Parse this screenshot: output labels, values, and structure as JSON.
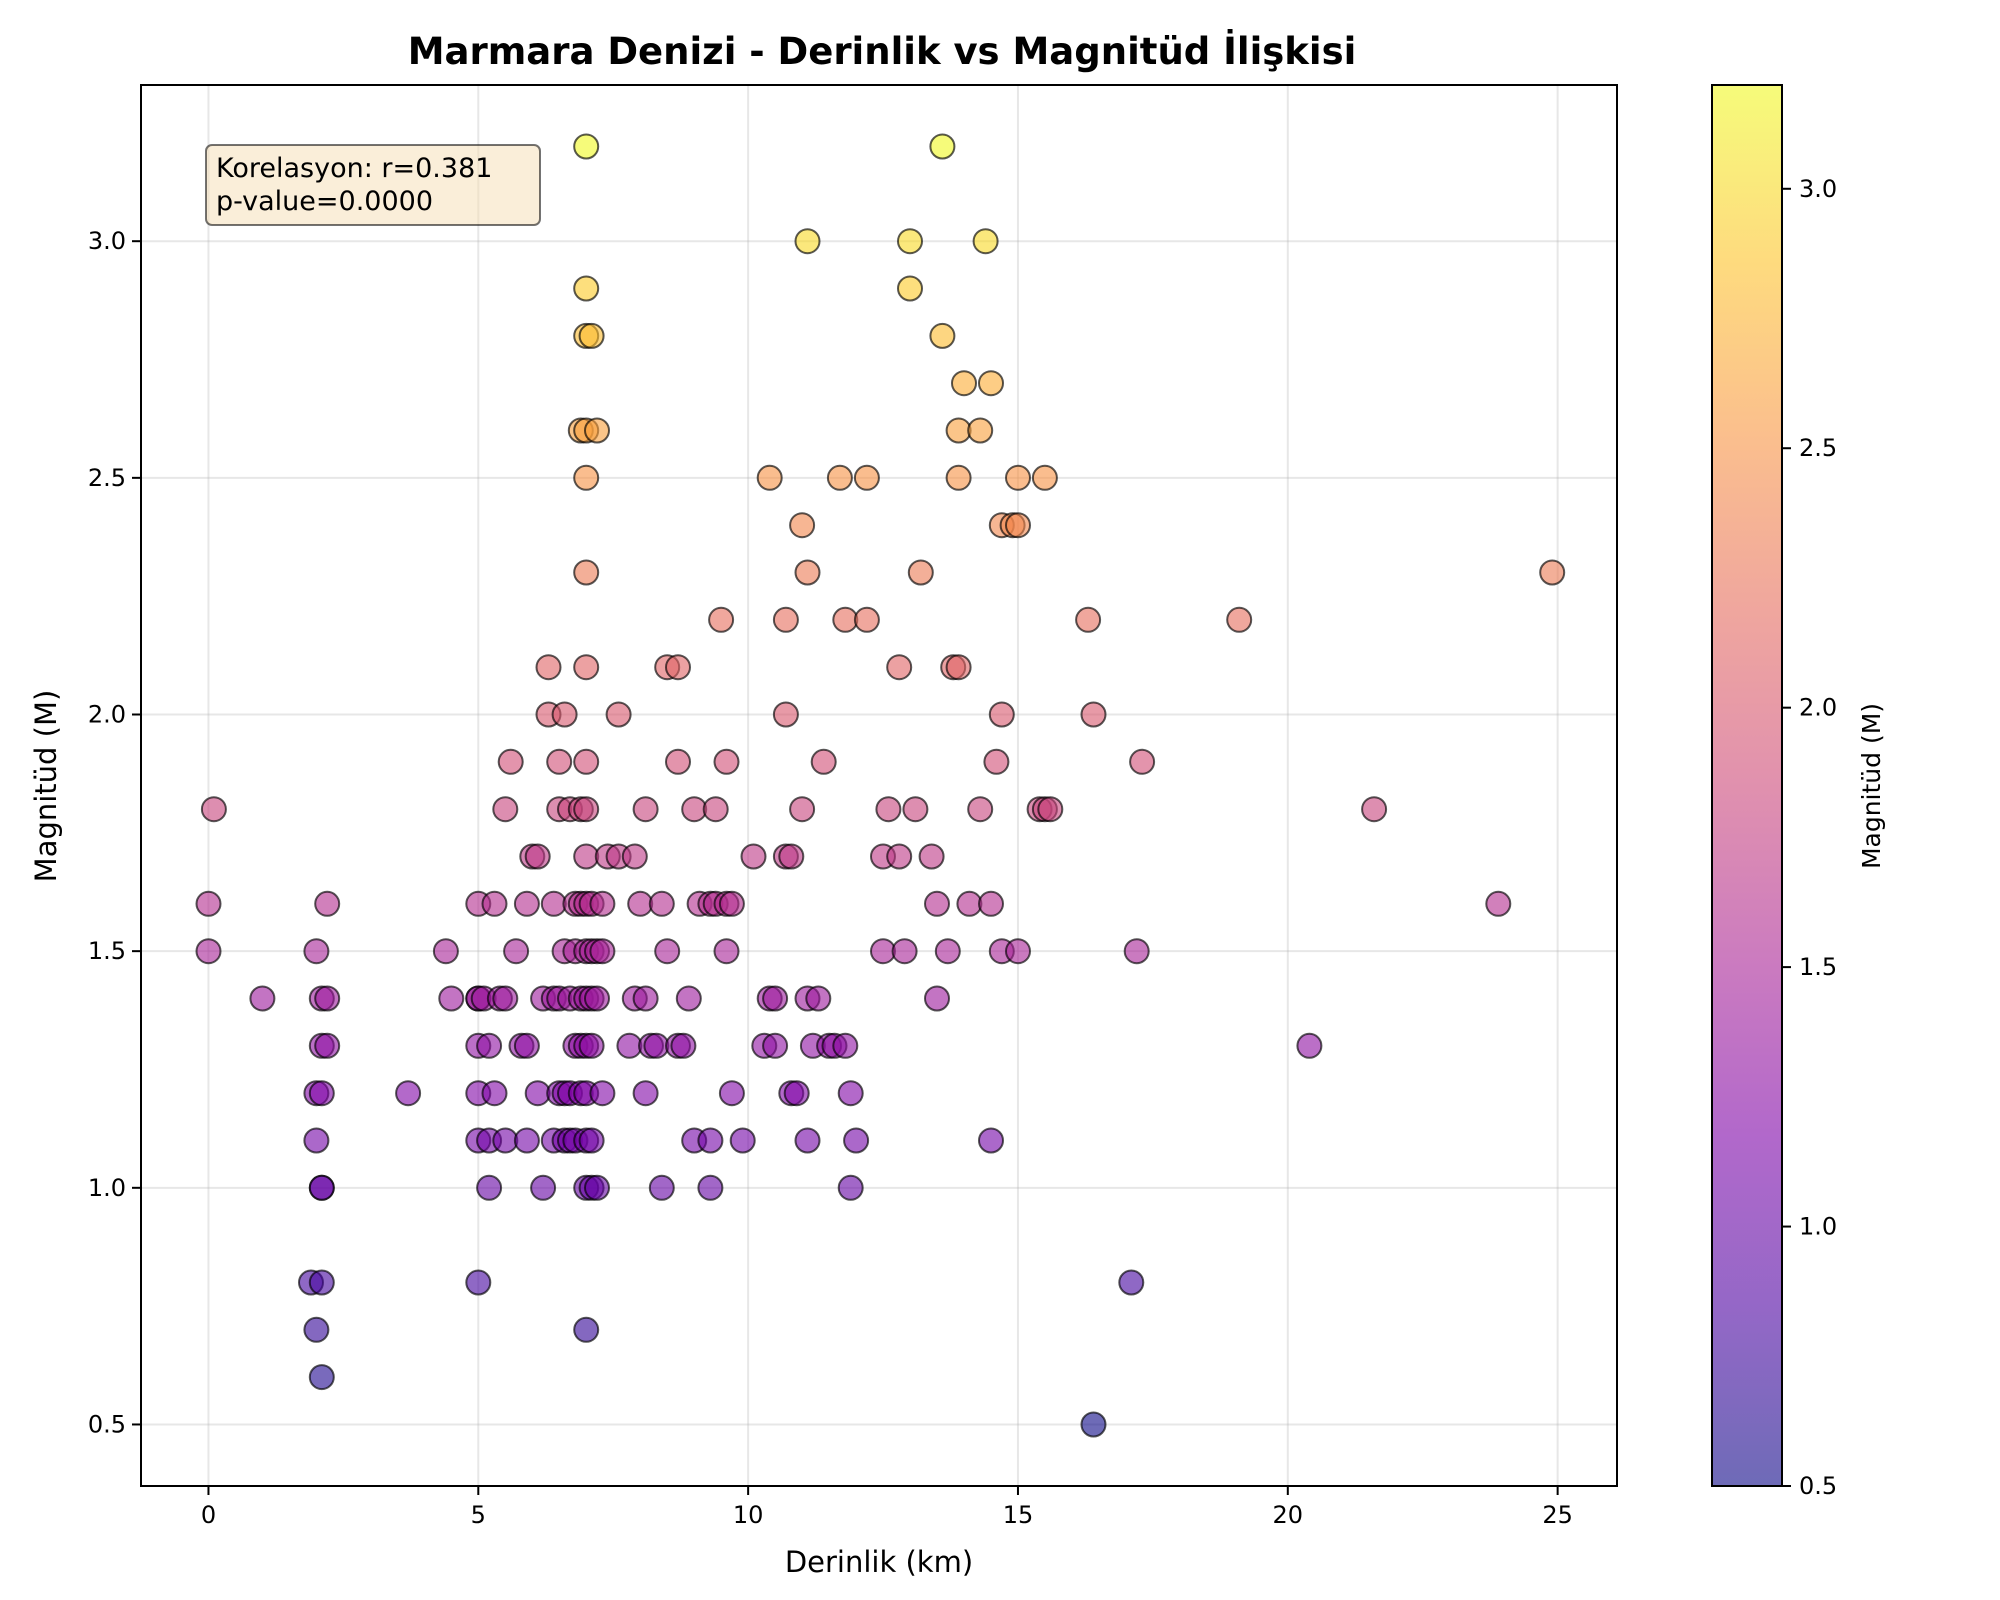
{
  "chart_data": {
    "type": "scatter",
    "title": "Marmara Denizi - Derinlik vs Magnitüd İlişkisi",
    "xlabel": "Derinlik (km)",
    "ylabel": "Magnitüd (M)",
    "xlim": [
      -1.25,
      26.1
    ],
    "ylim": [
      0.37,
      3.33
    ],
    "xticks": [
      0,
      5,
      10,
      15,
      20,
      25
    ],
    "xtick_labels": [
      "0",
      "5",
      "10",
      "15",
      "20",
      "25"
    ],
    "yticks": [
      0.5,
      1.0,
      1.5,
      2.0,
      2.5,
      3.0
    ],
    "ytick_labels": [
      "0.5",
      "1.0",
      "1.5",
      "2.0",
      "2.5",
      "3.0"
    ],
    "grid": true,
    "annotation": {
      "line1": "Korelasyon: r=0.381",
      "line2": "p-value=0.0000",
      "placement": "top-left"
    },
    "colorbar": {
      "label": "Magnitüd (M)",
      "colormap": "plasma",
      "range": [
        0.5,
        3.2
      ],
      "ticks": [
        0.5,
        1.0,
        1.5,
        2.0,
        2.5,
        3.0
      ],
      "tick_labels": [
        "0.5",
        "1.0",
        "1.5",
        "2.0",
        "2.5",
        "3.0"
      ]
    },
    "points": [
      [
        0.0,
        1.6
      ],
      [
        0.0,
        1.5
      ],
      [
        0.1,
        1.8
      ],
      [
        1.0,
        1.4
      ],
      [
        2.0,
        1.5
      ],
      [
        2.1,
        1.4
      ],
      [
        2.2,
        1.6
      ],
      [
        2.2,
        1.4
      ],
      [
        2.1,
        1.3
      ],
      [
        2.2,
        1.3
      ],
      [
        2.0,
        1.2
      ],
      [
        2.1,
        1.2
      ],
      [
        2.0,
        1.1
      ],
      [
        2.1,
        1.0
      ],
      [
        2.1,
        1.0
      ],
      [
        1.9,
        0.8
      ],
      [
        2.1,
        0.8
      ],
      [
        2.0,
        0.7
      ],
      [
        2.1,
        0.6
      ],
      [
        3.7,
        1.2
      ],
      [
        4.4,
        1.5
      ],
      [
        4.5,
        1.4
      ],
      [
        5.0,
        1.6
      ],
      [
        5.0,
        1.4
      ],
      [
        5.0,
        1.4
      ],
      [
        5.1,
        1.4
      ],
      [
        5.0,
        1.3
      ],
      [
        5.0,
        1.2
      ],
      [
        5.0,
        1.1
      ],
      [
        5.0,
        0.8
      ],
      [
        5.2,
        1.3
      ],
      [
        5.2,
        1.1
      ],
      [
        5.2,
        1.0
      ],
      [
        5.3,
        1.6
      ],
      [
        5.3,
        1.2
      ],
      [
        5.4,
        1.4
      ],
      [
        5.5,
        1.4
      ],
      [
        5.5,
        1.8
      ],
      [
        5.6,
        1.9
      ],
      [
        5.5,
        1.1
      ],
      [
        5.7,
        1.5
      ],
      [
        5.8,
        1.3
      ],
      [
        5.9,
        1.6
      ],
      [
        5.9,
        1.1
      ],
      [
        5.9,
        1.3
      ],
      [
        6.0,
        1.7
      ],
      [
        6.1,
        1.7
      ],
      [
        6.1,
        1.2
      ],
      [
        6.2,
        1.4
      ],
      [
        6.2,
        1.0
      ],
      [
        6.3,
        2.1
      ],
      [
        6.3,
        2.0
      ],
      [
        6.4,
        1.6
      ],
      [
        6.4,
        1.4
      ],
      [
        6.4,
        1.1
      ],
      [
        6.5,
        1.9
      ],
      [
        6.5,
        1.8
      ],
      [
        6.5,
        1.4
      ],
      [
        6.5,
        1.2
      ],
      [
        6.6,
        2.0
      ],
      [
        6.6,
        1.5
      ],
      [
        6.6,
        1.2
      ],
      [
        6.6,
        1.1
      ],
      [
        6.7,
        1.8
      ],
      [
        6.7,
        1.4
      ],
      [
        6.7,
        1.2
      ],
      [
        6.7,
        1.1
      ],
      [
        6.8,
        1.6
      ],
      [
        6.8,
        1.5
      ],
      [
        6.8,
        1.3
      ],
      [
        6.8,
        1.1
      ],
      [
        6.9,
        2.6
      ],
      [
        6.9,
        1.8
      ],
      [
        6.9,
        1.6
      ],
      [
        6.9,
        1.4
      ],
      [
        6.9,
        1.3
      ],
      [
        6.9,
        1.2
      ],
      [
        7.0,
        3.2
      ],
      [
        7.0,
        2.9
      ],
      [
        7.0,
        2.8
      ],
      [
        7.1,
        2.8
      ],
      [
        7.0,
        2.6
      ],
      [
        7.2,
        2.6
      ],
      [
        7.0,
        2.5
      ],
      [
        7.0,
        2.3
      ],
      [
        7.0,
        2.1
      ],
      [
        7.0,
        1.9
      ],
      [
        7.0,
        1.8
      ],
      [
        7.0,
        1.7
      ],
      [
        7.0,
        1.6
      ],
      [
        7.1,
        1.6
      ],
      [
        7.0,
        1.5
      ],
      [
        7.1,
        1.5
      ],
      [
        7.0,
        1.4
      ],
      [
        7.1,
        1.4
      ],
      [
        7.2,
        1.4
      ],
      [
        7.0,
        1.3
      ],
      [
        7.1,
        1.3
      ],
      [
        7.0,
        1.2
      ],
      [
        7.0,
        1.1
      ],
      [
        7.1,
        1.1
      ],
      [
        7.0,
        1.0
      ],
      [
        7.1,
        1.0
      ],
      [
        7.2,
        1.0
      ],
      [
        7.0,
        0.7
      ],
      [
        7.2,
        1.5
      ],
      [
        7.3,
        1.6
      ],
      [
        7.3,
        1.2
      ],
      [
        7.3,
        1.5
      ],
      [
        7.4,
        1.7
      ],
      [
        7.6,
        2.0
      ],
      [
        7.6,
        1.7
      ],
      [
        7.8,
        1.3
      ],
      [
        7.9,
        1.7
      ],
      [
        7.9,
        1.4
      ],
      [
        8.0,
        1.6
      ],
      [
        8.1,
        1.4
      ],
      [
        8.1,
        1.2
      ],
      [
        8.1,
        1.8
      ],
      [
        8.2,
        1.3
      ],
      [
        8.3,
        1.3
      ],
      [
        8.4,
        1.6
      ],
      [
        8.4,
        1.0
      ],
      [
        8.5,
        2.1
      ],
      [
        8.5,
        1.5
      ],
      [
        8.7,
        2.1
      ],
      [
        8.7,
        1.9
      ],
      [
        8.7,
        1.3
      ],
      [
        8.8,
        1.3
      ],
      [
        8.9,
        1.4
      ],
      [
        9.0,
        1.8
      ],
      [
        9.0,
        1.1
      ],
      [
        9.1,
        1.6
      ],
      [
        9.3,
        1.6
      ],
      [
        9.3,
        1.1
      ],
      [
        9.3,
        1.0
      ],
      [
        9.4,
        1.8
      ],
      [
        9.4,
        1.6
      ],
      [
        9.5,
        2.2
      ],
      [
        9.6,
        1.9
      ],
      [
        9.6,
        1.6
      ],
      [
        9.6,
        1.5
      ],
      [
        9.7,
        1.6
      ],
      [
        9.7,
        1.2
      ],
      [
        9.9,
        1.1
      ],
      [
        10.1,
        1.7
      ],
      [
        10.3,
        1.3
      ],
      [
        10.4,
        2.5
      ],
      [
        10.4,
        1.4
      ],
      [
        10.5,
        1.4
      ],
      [
        10.5,
        1.3
      ],
      [
        10.7,
        2.2
      ],
      [
        10.7,
        2.0
      ],
      [
        10.7,
        1.7
      ],
      [
        10.8,
        1.7
      ],
      [
        10.8,
        1.2
      ],
      [
        10.9,
        1.2
      ],
      [
        11.0,
        2.4
      ],
      [
        11.0,
        1.8
      ],
      [
        11.1,
        3.0
      ],
      [
        11.1,
        2.3
      ],
      [
        11.1,
        1.4
      ],
      [
        11.1,
        1.1
      ],
      [
        11.2,
        1.3
      ],
      [
        11.3,
        1.4
      ],
      [
        11.4,
        1.9
      ],
      [
        11.5,
        1.3
      ],
      [
        11.6,
        1.3
      ],
      [
        11.7,
        2.5
      ],
      [
        11.8,
        1.3
      ],
      [
        11.8,
        2.2
      ],
      [
        11.9,
        1.2
      ],
      [
        11.9,
        1.0
      ],
      [
        12.0,
        1.1
      ],
      [
        12.2,
        2.5
      ],
      [
        12.2,
        2.2
      ],
      [
        12.5,
        1.7
      ],
      [
        12.5,
        1.5
      ],
      [
        12.6,
        1.8
      ],
      [
        12.8,
        2.1
      ],
      [
        12.8,
        1.7
      ],
      [
        12.9,
        1.5
      ],
      [
        13.0,
        3.0
      ],
      [
        13.0,
        2.9
      ],
      [
        13.1,
        1.8
      ],
      [
        13.2,
        2.3
      ],
      [
        13.4,
        1.7
      ],
      [
        13.5,
        1.6
      ],
      [
        13.5,
        1.4
      ],
      [
        13.6,
        3.2
      ],
      [
        13.6,
        2.8
      ],
      [
        13.7,
        1.5
      ],
      [
        13.8,
        2.1
      ],
      [
        13.9,
        2.6
      ],
      [
        13.9,
        2.5
      ],
      [
        13.9,
        2.1
      ],
      [
        14.0,
        2.7
      ],
      [
        14.1,
        1.6
      ],
      [
        14.3,
        2.6
      ],
      [
        14.3,
        1.8
      ],
      [
        14.4,
        3.0
      ],
      [
        14.5,
        2.7
      ],
      [
        14.5,
        1.6
      ],
      [
        14.5,
        1.1
      ],
      [
        14.6,
        1.9
      ],
      [
        14.7,
        2.4
      ],
      [
        14.7,
        2.0
      ],
      [
        14.7,
        1.5
      ],
      [
        14.9,
        2.4
      ],
      [
        15.0,
        2.5
      ],
      [
        15.0,
        2.4
      ],
      [
        15.0,
        1.5
      ],
      [
        15.4,
        1.8
      ],
      [
        15.5,
        2.5
      ],
      [
        15.5,
        1.8
      ],
      [
        15.6,
        1.8
      ],
      [
        16.3,
        2.2
      ],
      [
        16.4,
        2.0
      ],
      [
        16.4,
        0.5
      ],
      [
        17.1,
        0.8
      ],
      [
        17.2,
        1.5
      ],
      [
        17.3,
        1.9
      ],
      [
        19.1,
        2.2
      ],
      [
        20.4,
        1.3
      ],
      [
        21.6,
        1.8
      ],
      [
        23.9,
        1.6
      ],
      [
        24.9,
        2.3
      ]
    ]
  }
}
